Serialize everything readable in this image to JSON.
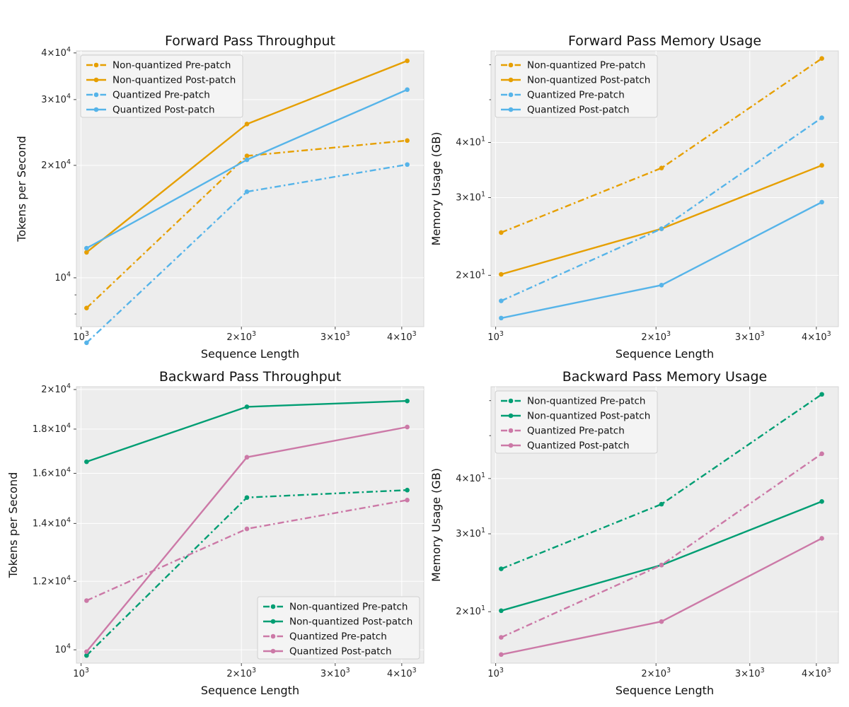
{
  "chart_data": [
    {
      "type": "line",
      "title": "Forward Pass Throughput",
      "xlabel": "Sequence Length",
      "ylabel": "Tokens per Second",
      "xscale": "log",
      "yscale": "log",
      "xlim": [
        980,
        4400
      ],
      "ylim": [
        7400,
        40500
      ],
      "x": [
        1024,
        2048,
        4096
      ],
      "xticks": [
        {
          "v": 1000,
          "b": "10",
          "e": "3"
        },
        {
          "v": 2000,
          "m": "2×10",
          "e": "3"
        },
        {
          "v": 3000,
          "m": "3×10",
          "e": "3"
        },
        {
          "v": 4000,
          "m": "4×10",
          "e": "3"
        }
      ],
      "yticks": [
        {
          "v": 10000,
          "b": "10",
          "e": "4"
        },
        {
          "v": 20000,
          "m": "2×10",
          "e": "4"
        },
        {
          "v": 30000,
          "m": "3×10",
          "e": "4"
        },
        {
          "v": 40000,
          "m": "4×10",
          "e": "4"
        }
      ],
      "yminor": [
        6000,
        7000,
        8000,
        9000
      ],
      "grid": true,
      "legend": "top-left",
      "series": [
        {
          "name": "Non-quantized Pre-patch",
          "color": "#E69F00",
          "style": "dashdot",
          "values": [
            8300,
            21200,
            23300
          ]
        },
        {
          "name": "Non-quantized Post-patch",
          "color": "#E69F00",
          "style": "solid",
          "values": [
            11700,
            25800,
            38100
          ]
        },
        {
          "name": "Quantized Pre-patch",
          "color": "#56B4E9",
          "style": "dashdot",
          "values": [
            6700,
            17000,
            20100
          ]
        },
        {
          "name": "Quantized Post-patch",
          "color": "#56B4E9",
          "style": "solid",
          "values": [
            12000,
            20700,
            31900
          ]
        }
      ]
    },
    {
      "type": "line",
      "title": "Forward Pass Memory Usage",
      "xlabel": "Sequence Length",
      "ylabel": "Memory Usage (GB)",
      "xscale": "log",
      "yscale": "log",
      "xlim": [
        980,
        4400
      ],
      "ylim": [
        15.3,
        64.5
      ],
      "x": [
        1024,
        2048,
        4096
      ],
      "xticks": [
        {
          "v": 1000,
          "b": "10",
          "e": "3"
        },
        {
          "v": 2000,
          "m": "2×10",
          "e": "3"
        },
        {
          "v": 3000,
          "m": "3×10",
          "e": "3"
        },
        {
          "v": 4000,
          "m": "4×10",
          "e": "3"
        }
      ],
      "yticks": [
        {
          "v": 20,
          "m": "2×10",
          "e": "1"
        },
        {
          "v": 30,
          "m": "3×10",
          "e": "1"
        },
        {
          "v": 40,
          "m": "4×10",
          "e": "1"
        }
      ],
      "yminor": [
        50,
        60
      ],
      "grid": true,
      "legend": "top-left",
      "series": [
        {
          "name": "Non-quantized Pre-patch",
          "color": "#E69F00",
          "style": "dashdot",
          "values": [
            25.0,
            35.0,
            62.0
          ]
        },
        {
          "name": "Non-quantized Post-patch",
          "color": "#E69F00",
          "style": "solid",
          "values": [
            20.1,
            25.5,
            35.5
          ]
        },
        {
          "name": "Quantized Pre-patch",
          "color": "#56B4E9",
          "style": "dashdot",
          "values": [
            17.5,
            25.5,
            45.5
          ]
        },
        {
          "name": "Quantized Post-patch",
          "color": "#56B4E9",
          "style": "solid",
          "values": [
            16.0,
            19.0,
            29.3
          ]
        }
      ]
    },
    {
      "type": "line",
      "title": "Backward Pass Throughput",
      "xlabel": "Sequence Length",
      "ylabel": "Tokens per Second",
      "xscale": "log",
      "yscale": "log",
      "xlim": [
        980,
        4400
      ],
      "ylim": [
        9650,
        20150
      ],
      "x": [
        1024,
        2048,
        4096
      ],
      "xticks": [
        {
          "v": 1000,
          "b": "10",
          "e": "3"
        },
        {
          "v": 2000,
          "m": "2×10",
          "e": "3"
        },
        {
          "v": 3000,
          "m": "3×10",
          "e": "3"
        },
        {
          "v": 4000,
          "m": "4×10",
          "e": "3"
        }
      ],
      "yticks": [
        {
          "v": 10000,
          "b": "10",
          "e": "4"
        },
        {
          "v": 12000,
          "m": "1.2×10",
          "e": "4"
        },
        {
          "v": 14000,
          "m": "1.4×10",
          "e": "4"
        },
        {
          "v": 16000,
          "m": "1.6×10",
          "e": "4"
        },
        {
          "v": 18000,
          "m": "1.8×10",
          "e": "4"
        },
        {
          "v": 20000,
          "m": "2×10",
          "e": "4"
        }
      ],
      "yminor": [],
      "grid": true,
      "legend": "bottom-right",
      "series": [
        {
          "name": "Non-quantized Pre-patch",
          "color": "#009E73",
          "style": "dashdot",
          "values": [
            9850,
            15000,
            15300
          ]
        },
        {
          "name": "Non-quantized Post-patch",
          "color": "#009E73",
          "style": "solid",
          "values": [
            16500,
            19100,
            19400
          ]
        },
        {
          "name": "Quantized Pre-patch",
          "color": "#CC79A7",
          "style": "dashdot",
          "values": [
            11400,
            13800,
            14900
          ]
        },
        {
          "name": "Quantized Post-patch",
          "color": "#CC79A7",
          "style": "solid",
          "values": [
            9950,
            16700,
            18100
          ]
        }
      ]
    },
    {
      "type": "line",
      "title": "Backward Pass Memory Usage",
      "xlabel": "Sequence Length",
      "ylabel": "Memory Usage (GB)",
      "xscale": "log",
      "yscale": "log",
      "xlim": [
        980,
        4400
      ],
      "ylim": [
        15.3,
        64.5
      ],
      "x": [
        1024,
        2048,
        4096
      ],
      "xticks": [
        {
          "v": 1000,
          "b": "10",
          "e": "3"
        },
        {
          "v": 2000,
          "m": "2×10",
          "e": "3"
        },
        {
          "v": 3000,
          "m": "3×10",
          "e": "3"
        },
        {
          "v": 4000,
          "m": "4×10",
          "e": "3"
        }
      ],
      "yticks": [
        {
          "v": 20,
          "m": "2×10",
          "e": "1"
        },
        {
          "v": 30,
          "m": "3×10",
          "e": "1"
        },
        {
          "v": 40,
          "m": "4×10",
          "e": "1"
        }
      ],
      "yminor": [
        50,
        60
      ],
      "grid": true,
      "legend": "top-left",
      "series": [
        {
          "name": "Non-quantized Pre-patch",
          "color": "#009E73",
          "style": "dashdot",
          "values": [
            25.0,
            35.0,
            62.0
          ]
        },
        {
          "name": "Non-quantized Post-patch",
          "color": "#009E73",
          "style": "solid",
          "values": [
            20.1,
            25.5,
            35.5
          ]
        },
        {
          "name": "Quantized Pre-patch",
          "color": "#CC79A7",
          "style": "dashdot",
          "values": [
            17.5,
            25.5,
            45.5
          ]
        },
        {
          "name": "Quantized Post-patch",
          "color": "#CC79A7",
          "style": "solid",
          "values": [
            16.0,
            19.0,
            29.3
          ]
        }
      ]
    }
  ]
}
